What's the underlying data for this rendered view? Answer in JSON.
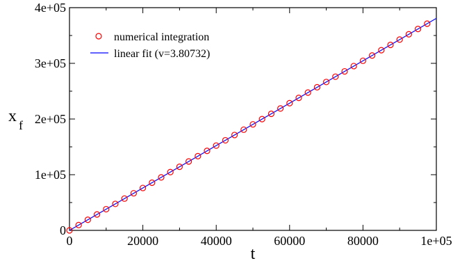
{
  "chart_data": {
    "type": "scatter",
    "xlabel": "t",
    "ylabel": "x",
    "ylabel_sub": "f",
    "xlim": [
      0,
      100000
    ],
    "ylim": [
      0,
      400000
    ],
    "x_ticks": [
      0,
      20000,
      40000,
      60000,
      80000,
      100000
    ],
    "x_tick_labels": [
      "0",
      "20000",
      "40000",
      "60000",
      "80000",
      "1e+05"
    ],
    "y_ticks": [
      0,
      100000,
      200000,
      300000,
      400000
    ],
    "y_tick_labels": [
      "0",
      "1e+05",
      "2e+05",
      "3e+05",
      "4e+05"
    ],
    "grid": false,
    "legend_position": "top-left",
    "series": [
      {
        "name": "numerical integration",
        "kind": "markers",
        "marker": "circle-open",
        "color": "#ff0000",
        "x": [
          0,
          2500,
          5000,
          7500,
          10000,
          12500,
          15000,
          17500,
          20000,
          22500,
          25000,
          27500,
          30000,
          32500,
          35000,
          37500,
          40000,
          42500,
          45000,
          47500,
          50000,
          52500,
          55000,
          57500,
          60000,
          62500,
          65000,
          67500,
          70000,
          72500,
          75000,
          77500,
          80000,
          82500,
          85000,
          87500,
          90000,
          92500,
          95000,
          97500
        ],
        "y": [
          0,
          9518,
          19037,
          28555,
          38073,
          47592,
          57110,
          66628,
          76146,
          85665,
          95183,
          104701,
          114220,
          123738,
          133256,
          142775,
          152293,
          161811,
          171329,
          180848,
          190366,
          199884,
          209403,
          218921,
          228439,
          237958,
          247476,
          256994,
          266512,
          276031,
          285549,
          295067,
          304586,
          314104,
          323622,
          333141,
          342659,
          352177,
          361695,
          371214
        ]
      },
      {
        "name": "linear fit (v=3.80732)",
        "kind": "line",
        "color": "#0000ff",
        "x": [
          0,
          100000
        ],
        "y": [
          0,
          380732
        ]
      }
    ]
  }
}
